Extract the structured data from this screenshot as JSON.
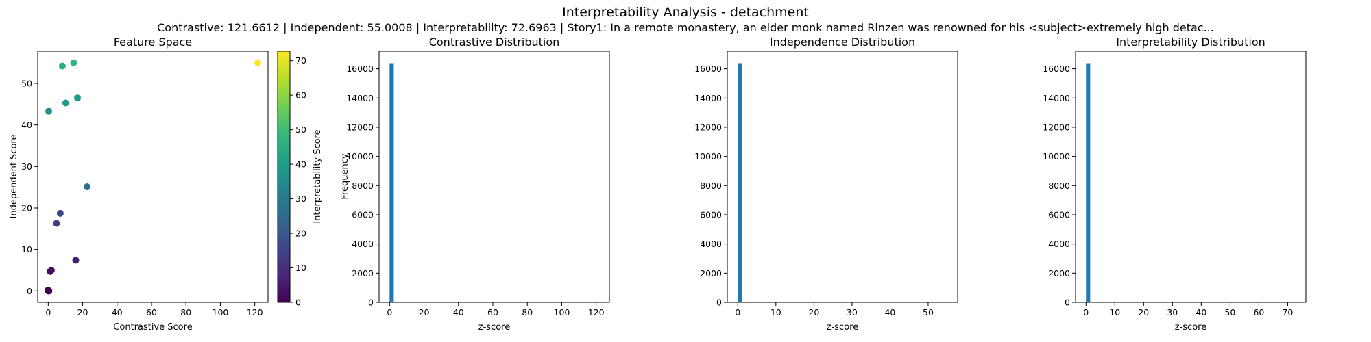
{
  "figure": {
    "title": "Interpretability Analysis - detachment",
    "subtitle": "Contrastive: 121.6612 | Independent: 55.0008 | Interpretability: 72.6963 | Story1: In a remote monastery, an elder monk named Rinzen was renowned for his <subject>extremely high detac..."
  },
  "colors": {
    "hist_bar": "#1f77b4",
    "axis": "#000000",
    "background": "#ffffff",
    "viridis_stops": [
      "#440154",
      "#482878",
      "#3e4989",
      "#31688e",
      "#26828e",
      "#1f9e89",
      "#35b779",
      "#6ece58",
      "#b5de2b",
      "#fde725"
    ]
  },
  "chart_data": [
    {
      "type": "scatter",
      "title": "Feature Space",
      "xlabel": "Contrastive Score",
      "ylabel": "Independent Score",
      "xlim": [
        -6.1,
        127.7
      ],
      "ylim": [
        -2.75,
        57.75
      ],
      "xticks": [
        0,
        20,
        40,
        60,
        80,
        100,
        120
      ],
      "yticks": [
        0,
        10,
        20,
        30,
        40,
        50
      ],
      "colorbar": {
        "label": "Interpretability Score",
        "range": [
          0,
          72.7
        ],
        "ticks": [
          0,
          10,
          20,
          30,
          40,
          50,
          60,
          70
        ],
        "colormap": "viridis"
      },
      "points": [
        {
          "x": 121.7,
          "y": 55.0,
          "c": 72.7
        },
        {
          "x": 14.8,
          "y": 55.0,
          "c": 48
        },
        {
          "x": 8.2,
          "y": 54.2,
          "c": 46
        },
        {
          "x": 17.0,
          "y": 46.5,
          "c": 40
        },
        {
          "x": 10.2,
          "y": 45.3,
          "c": 39
        },
        {
          "x": 0.3,
          "y": 43.3,
          "c": 36
        },
        {
          "x": 22.6,
          "y": 25.1,
          "c": 26
        },
        {
          "x": 7.0,
          "y": 18.7,
          "c": 15
        },
        {
          "x": 4.8,
          "y": 16.3,
          "c": 13
        },
        {
          "x": 16.0,
          "y": 7.4,
          "c": 6
        },
        {
          "x": 1.8,
          "y": 5.0,
          "c": 3
        },
        {
          "x": 1.2,
          "y": 4.7,
          "c": 2
        },
        {
          "x": 0.2,
          "y": 0.1,
          "c": 0
        },
        {
          "x": 0.4,
          "y": 0.0,
          "c": 0
        },
        {
          "x": -0.1,
          "y": 0.2,
          "c": 0
        },
        {
          "x": 0.0,
          "y": 0.0,
          "c": 0
        }
      ]
    },
    {
      "type": "bar",
      "title": "Contrastive Distribution",
      "xlabel": "z-score",
      "ylabel": "Frequency",
      "xlim": [
        -6.1,
        127.7
      ],
      "ylim": [
        0,
        17200
      ],
      "xticks": [
        0,
        20,
        40,
        60,
        80,
        100,
        120
      ],
      "yticks": [
        0,
        2000,
        4000,
        6000,
        8000,
        10000,
        12000,
        14000,
        16000
      ],
      "bins": [
        {
          "x0": 0,
          "x1": 2.43,
          "count": 16380
        }
      ]
    },
    {
      "type": "bar",
      "title": "Independence Distribution",
      "xlabel": "z-score",
      "ylabel": "",
      "xlim": [
        -2.75,
        57.75
      ],
      "ylim": [
        0,
        17200
      ],
      "xticks": [
        0,
        10,
        20,
        30,
        40,
        50
      ],
      "yticks": [
        0,
        2000,
        4000,
        6000,
        8000,
        10000,
        12000,
        14000,
        16000
      ],
      "bins": [
        {
          "x0": 0,
          "x1": 1.1,
          "count": 16380
        }
      ]
    },
    {
      "type": "bar",
      "title": "Interpretability Distribution",
      "xlabel": "z-score",
      "ylabel": "",
      "xlim": [
        -3.63,
        76.33
      ],
      "ylim": [
        0,
        17200
      ],
      "xticks": [
        0,
        10,
        20,
        30,
        40,
        50,
        60,
        70
      ],
      "yticks": [
        0,
        2000,
        4000,
        6000,
        8000,
        10000,
        12000,
        14000,
        16000
      ],
      "bins": [
        {
          "x0": 0,
          "x1": 1.45,
          "count": 16380
        }
      ]
    }
  ]
}
